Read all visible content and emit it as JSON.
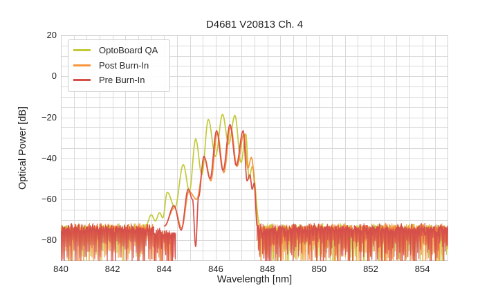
{
  "chart_data": {
    "type": "line",
    "title": "D4681 V20813 Ch. 4",
    "xlabel": "Wavelength [nm]",
    "ylabel": "Optical Power [dB]",
    "xlim": [
      840,
      855
    ],
    "ylim": [
      -90,
      20
    ],
    "xticks": [
      840,
      842,
      844,
      846,
      848,
      850,
      852,
      854
    ],
    "yticks": [
      20,
      0,
      -20,
      -40,
      -60,
      -80
    ],
    "grid": {
      "on": true,
      "x_step_nm": 0.5,
      "y_step_db": 5,
      "color": "#d9d9d9",
      "frame_color": "#d0d0d0"
    },
    "legend": {
      "position": "upper left"
    },
    "text_color": "#1f1f1f",
    "series": [
      {
        "name": "OptoBoard QA",
        "color": "#c3c937",
        "noise_floor_top_db": -72.5,
        "noise_spread_db": 20,
        "noise_bands": [
          {
            "from": 840.0,
            "to": 843.32,
            "top_db": -72.5
          },
          {
            "from": 847.7,
            "to": 855.0,
            "top_db": -72.5
          }
        ],
        "envelope_points": [
          [
            843.3,
            -72.5
          ],
          [
            843.5,
            -67.5
          ],
          [
            843.66,
            -70.5
          ],
          [
            843.82,
            -66.5
          ],
          [
            843.95,
            -69.0
          ],
          [
            844.12,
            -56.5
          ],
          [
            844.42,
            -64.0
          ],
          [
            844.74,
            -43.0
          ],
          [
            844.98,
            -56.0
          ],
          [
            845.22,
            -30.5
          ],
          [
            845.46,
            -48.0
          ],
          [
            845.71,
            -21.0
          ],
          [
            845.99,
            -39.0
          ],
          [
            846.26,
            -18.5
          ],
          [
            846.5,
            -33.0
          ],
          [
            846.74,
            -19.0
          ],
          [
            846.98,
            -42.0
          ],
          [
            847.16,
            -28.0
          ],
          [
            847.29,
            -50.0
          ],
          [
            847.41,
            -44.0
          ],
          [
            847.7,
            -72.5
          ]
        ]
      },
      {
        "name": "Post Burn-In",
        "color": "#f6953c",
        "noise_floor_top_db": -72.5,
        "noise_spread_db": 20,
        "noise_bands": [
          {
            "from": 840.0,
            "to": 843.58,
            "top_db": -72.5
          },
          {
            "from": 843.58,
            "to": 844.3,
            "top_db": -76.0
          },
          {
            "from": 847.64,
            "to": 855.0,
            "top_db": -72.5
          }
        ],
        "envelope_points": [
          [
            844.0,
            -73.0
          ],
          [
            844.4,
            -64.0
          ],
          [
            844.68,
            -74.0
          ],
          [
            844.96,
            -56.0
          ],
          [
            845.26,
            -60.0
          ],
          [
            845.57,
            -40.0
          ],
          [
            845.81,
            -51.0
          ],
          [
            846.06,
            -27.5
          ],
          [
            846.31,
            -47.0
          ],
          [
            846.58,
            -24.5
          ],
          [
            846.82,
            -44.0
          ],
          [
            847.09,
            -28.0
          ],
          [
            847.24,
            -45.0
          ],
          [
            847.38,
            -39.5
          ],
          [
            847.64,
            -73.0
          ]
        ]
      },
      {
        "name": "Pre Burn-In",
        "color": "#d6504b",
        "noise_floor_top_db": -72.5,
        "noise_spread_db": 20,
        "noise_bands": [
          {
            "from": 840.0,
            "to": 843.6,
            "top_db": -72.5
          },
          {
            "from": 843.6,
            "to": 844.45,
            "top_db": -74.5
          },
          {
            "from": 847.6,
            "to": 855.0,
            "top_db": -72.5
          }
        ],
        "envelope_points": [
          [
            844.02,
            -73.0
          ],
          [
            844.38,
            -63.0
          ],
          [
            844.66,
            -75.0
          ],
          [
            844.93,
            -55.0
          ],
          [
            845.1,
            -60.0
          ],
          [
            845.22,
            -83.0
          ],
          [
            845.33,
            -59.0
          ],
          [
            845.54,
            -39.0
          ],
          [
            845.78,
            -50.0
          ],
          [
            846.03,
            -26.5
          ],
          [
            846.28,
            -46.0
          ],
          [
            846.55,
            -23.5
          ],
          [
            846.79,
            -43.5
          ],
          [
            847.06,
            -26.5
          ],
          [
            847.21,
            -51.0
          ],
          [
            847.32,
            -48.0
          ],
          [
            847.41,
            -55.0
          ],
          [
            847.49,
            -52.0
          ],
          [
            847.6,
            -73.0
          ]
        ]
      }
    ]
  }
}
